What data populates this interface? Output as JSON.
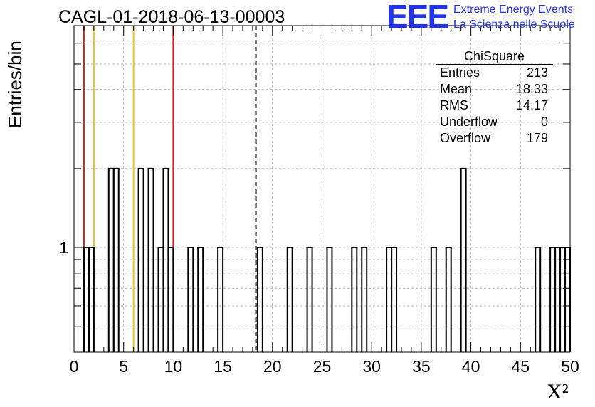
{
  "title": "CAGL-01-2018-06-13-00003",
  "logo": {
    "mark": "EEE",
    "line1": "Extreme Energy Events",
    "line2": "La Scienza nelle Scuole"
  },
  "stats_box": {
    "title": "ChiSquare",
    "rows": [
      {
        "label": "Entries",
        "value": "213"
      },
      {
        "label": "Mean",
        "value": "18.33"
      },
      {
        "label": "RMS",
        "value": "14.17"
      },
      {
        "label": "Underflow",
        "value": "0"
      },
      {
        "label": "Overflow",
        "value": "179"
      }
    ]
  },
  "axes": {
    "xlabel": "X²",
    "ylabel": "Entries/bin"
  },
  "chart_data": {
    "type": "histogram",
    "title": "CAGL-01-2018-06-13-00003",
    "xlabel": "X²",
    "ylabel": "Entries/bin",
    "xlim": [
      0,
      50
    ],
    "ylim": [
      0.4,
      7
    ],
    "yscale": "log",
    "grid": true,
    "legend_placement": "top-right",
    "x_ticks": [
      0,
      5,
      10,
      15,
      20,
      25,
      30,
      35,
      40,
      45,
      50
    ],
    "y_ticks": [
      1
    ],
    "bin_width": 0.5,
    "bins": [
      {
        "x": 1.0,
        "y": 1
      },
      {
        "x": 1.5,
        "y": 1
      },
      {
        "x": 3.5,
        "y": 2
      },
      {
        "x": 4.0,
        "y": 2
      },
      {
        "x": 6.5,
        "y": 2
      },
      {
        "x": 7.5,
        "y": 2
      },
      {
        "x": 8.5,
        "y": 1
      },
      {
        "x": 9.0,
        "y": 2
      },
      {
        "x": 9.5,
        "y": 1
      },
      {
        "x": 11.5,
        "y": 1
      },
      {
        "x": 12.5,
        "y": 1
      },
      {
        "x": 14.5,
        "y": 1
      },
      {
        "x": 18.5,
        "y": 1
      },
      {
        "x": 21.5,
        "y": 1
      },
      {
        "x": 23.5,
        "y": 1
      },
      {
        "x": 25.5,
        "y": 1
      },
      {
        "x": 28.0,
        "y": 1
      },
      {
        "x": 29.0,
        "y": 1
      },
      {
        "x": 31.5,
        "y": 1
      },
      {
        "x": 32.0,
        "y": 1
      },
      {
        "x": 36.0,
        "y": 1
      },
      {
        "x": 37.5,
        "y": 1
      },
      {
        "x": 39.0,
        "y": 2
      },
      {
        "x": 46.5,
        "y": 1
      },
      {
        "x": 48.0,
        "y": 1
      },
      {
        "x": 48.5,
        "y": 1
      },
      {
        "x": 49.0,
        "y": 1
      },
      {
        "x": 49.5,
        "y": 1
      }
    ],
    "vertical_lines": [
      {
        "x": 1.0,
        "color": "#d62020",
        "style": "solid"
      },
      {
        "x": 2.0,
        "color": "#f0c020",
        "style": "solid"
      },
      {
        "x": 6.0,
        "color": "#f0c020",
        "style": "solid"
      },
      {
        "x": 10.0,
        "color": "#d62020",
        "style": "solid"
      },
      {
        "x": 18.33,
        "color": "#000000",
        "style": "dashed"
      }
    ]
  }
}
